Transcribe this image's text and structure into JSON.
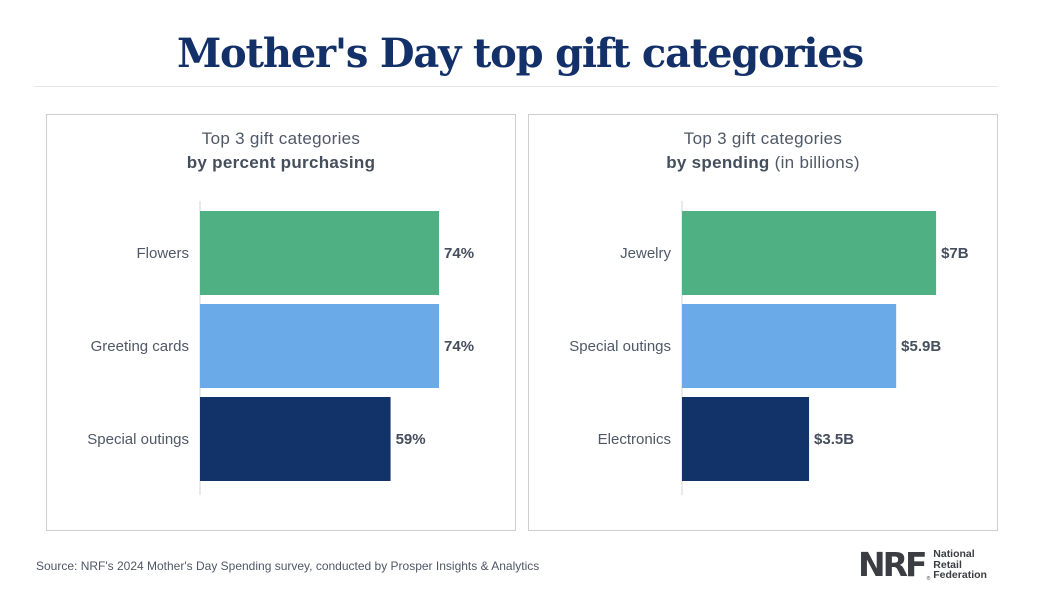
{
  "title": "Mother's Day top gift categories",
  "colors": {
    "title": "#133069",
    "bar_1": "#4fb183",
    "bar_2": "#6aaae8",
    "bar_3": "#113369",
    "text": "#4f5866",
    "axis": "#d6d6d6"
  },
  "chart_data": [
    {
      "type": "bar",
      "orientation": "horizontal",
      "title_line1": "Top 3 gift categories",
      "title_line2_bold": "by percent purchasing",
      "title_line2_rest": "",
      "categories": [
        "Flowers",
        "Greeting cards",
        "Special outings"
      ],
      "values": [
        74,
        74,
        59
      ],
      "value_labels": [
        "74%",
        "74%",
        "59%"
      ],
      "unit": "percent",
      "xlim": [
        0,
        100
      ],
      "grid": false,
      "legend": "none"
    },
    {
      "type": "bar",
      "orientation": "horizontal",
      "title_line1": "Top 3 gift categories",
      "title_line2_bold": "by spending",
      "title_line2_rest": " (in billions)",
      "categories": [
        "Jewelry",
        "Special outings",
        "Electronics"
      ],
      "values": [
        7,
        5.9,
        3.5
      ],
      "value_labels": [
        "$7B",
        "$5.9B",
        "$3.5B"
      ],
      "unit": "billions USD",
      "xlim": [
        0,
        10
      ],
      "grid": false,
      "legend": "none"
    }
  ],
  "footer": {
    "source": "Source: NRF's 2024 Mother's Day Spending survey, conducted by Prosper Insights & Analytics",
    "logo_mark": "NRF",
    "logo_reg": "®",
    "logo_lines": [
      "National",
      "Retail",
      "Federation"
    ]
  }
}
